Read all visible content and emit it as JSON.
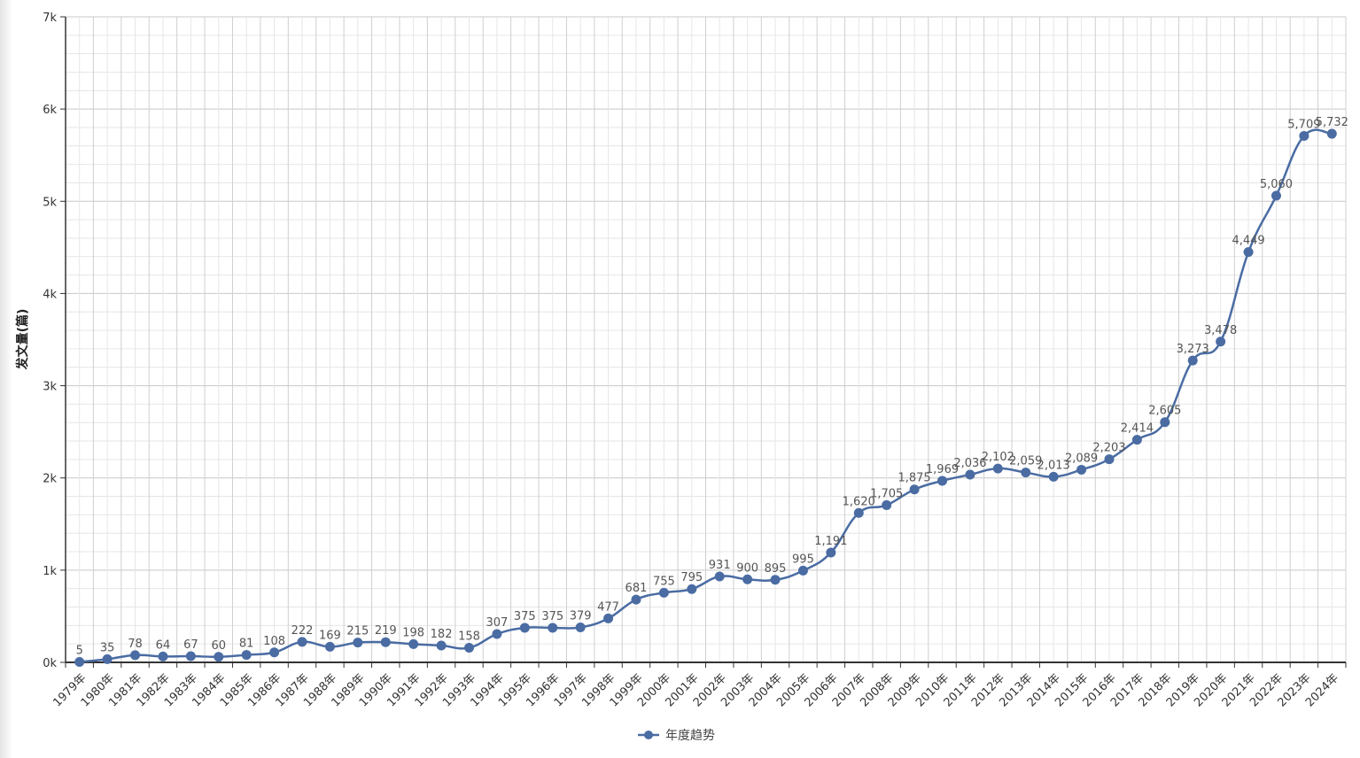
{
  "chart_data": {
    "type": "line",
    "title": "",
    "xlabel": "",
    "ylabel": "发文量(篇)",
    "ylim": [
      0,
      7000
    ],
    "yticks": [
      "0k",
      "1k",
      "2k",
      "3k",
      "4k",
      "5k",
      "6k",
      "7k"
    ],
    "grid": true,
    "legend_position": "bottom",
    "color": "#4a6ca3",
    "categories": [
      "1979年",
      "1980年",
      "1981年",
      "1982年",
      "1983年",
      "1984年",
      "1985年",
      "1986年",
      "1987年",
      "1988年",
      "1989年",
      "1990年",
      "1991年",
      "1992年",
      "1993年",
      "1994年",
      "1995年",
      "1996年",
      "1997年",
      "1998年",
      "1999年",
      "2000年",
      "2001年",
      "2002年",
      "2003年",
      "2004年",
      "2005年",
      "2006年",
      "2007年",
      "2008年",
      "2009年",
      "2010年",
      "2011年",
      "2012年",
      "2013年",
      "2014年",
      "2015年",
      "2016年",
      "2017年",
      "2018年",
      "2019年",
      "2020年",
      "2021年",
      "2022年",
      "2023年",
      "2024年"
    ],
    "series": [
      {
        "name": "年度趋势",
        "values": [
          5,
          35,
          78,
          64,
          67,
          60,
          81,
          108,
          222,
          169,
          215,
          219,
          198,
          182,
          158,
          307,
          375,
          375,
          379,
          477,
          681,
          755,
          795,
          931,
          900,
          895,
          995,
          1191,
          1620,
          1705,
          1875,
          1969,
          2036,
          2102,
          2059,
          2013,
          2089,
          2203,
          2414,
          2605,
          3273,
          3478,
          4449,
          5060,
          5709,
          5732
        ]
      }
    ]
  }
}
